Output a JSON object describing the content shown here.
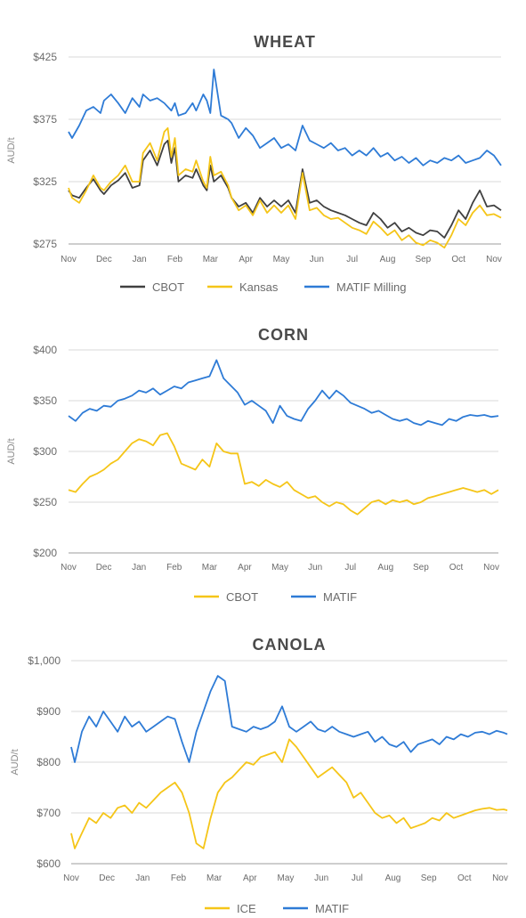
{
  "colors": {
    "cbot_dark": "#404040",
    "yellow": "#F5C518",
    "blue": "#2E7BD6"
  },
  "chart_data": [
    {
      "type": "line",
      "title": "WHEAT",
      "ylabel": "AUD/t",
      "ylim": [
        275,
        425
      ],
      "yticks": [
        275,
        325,
        375,
        425
      ],
      "ytick_labels": [
        "$275",
        "$325",
        "$375",
        "$425"
      ],
      "xlim": [
        0,
        12.2
      ],
      "xtick_labels": [
        "Nov",
        "Dec",
        "Jan",
        "Feb",
        "Mar",
        "Apr",
        "May",
        "Jun",
        "Jul",
        "Aug",
        "Sep",
        "Oct",
        "Nov"
      ],
      "legend_position": "bottom",
      "series": [
        {
          "name": "CBOT",
          "color": "#404040",
          "x": [
            0,
            0.1,
            0.3,
            0.5,
            0.7,
            0.9,
            1.0,
            1.2,
            1.4,
            1.6,
            1.8,
            2.0,
            2.1,
            2.3,
            2.5,
            2.7,
            2.8,
            2.9,
            3.0,
            3.1,
            3.3,
            3.5,
            3.6,
            3.8,
            3.9,
            4.0,
            4.1,
            4.3,
            4.5,
            4.6,
            4.8,
            5.0,
            5.2,
            5.4,
            5.6,
            5.8,
            6.0,
            6.2,
            6.4,
            6.6,
            6.8,
            7.0,
            7.2,
            7.4,
            7.6,
            7.8,
            8.0,
            8.2,
            8.4,
            8.6,
            8.8,
            9.0,
            9.2,
            9.4,
            9.6,
            9.8,
            10.0,
            10.2,
            10.4,
            10.6,
            10.8,
            11.0,
            11.2,
            11.4,
            11.6,
            11.8,
            12.0,
            12.2
          ],
          "values": [
            318,
            314,
            312,
            320,
            327,
            318,
            315,
            322,
            326,
            332,
            320,
            322,
            342,
            350,
            338,
            355,
            358,
            340,
            352,
            325,
            330,
            328,
            335,
            322,
            318,
            338,
            325,
            330,
            320,
            312,
            305,
            308,
            300,
            312,
            305,
            310,
            305,
            310,
            300,
            335,
            308,
            310,
            305,
            302,
            300,
            298,
            295,
            292,
            290,
            300,
            295,
            288,
            292,
            285,
            288,
            284,
            282,
            286,
            285,
            280,
            290,
            302,
            295,
            308,
            318,
            305,
            306,
            302
          ]
        },
        {
          "name": "Kansas",
          "color": "#F5C518",
          "x": [
            0,
            0.1,
            0.3,
            0.5,
            0.7,
            0.9,
            1.0,
            1.2,
            1.4,
            1.6,
            1.8,
            2.0,
            2.1,
            2.3,
            2.5,
            2.7,
            2.8,
            2.9,
            3.0,
            3.1,
            3.3,
            3.5,
            3.6,
            3.8,
            3.9,
            4.0,
            4.1,
            4.3,
            4.5,
            4.6,
            4.8,
            5.0,
            5.2,
            5.4,
            5.6,
            5.8,
            6.0,
            6.2,
            6.4,
            6.6,
            6.8,
            7.0,
            7.2,
            7.4,
            7.6,
            7.8,
            8.0,
            8.2,
            8.4,
            8.6,
            8.8,
            9.0,
            9.2,
            9.4,
            9.6,
            9.8,
            10.0,
            10.2,
            10.4,
            10.6,
            10.8,
            11.0,
            11.2,
            11.4,
            11.6,
            11.8,
            12.0,
            12.2
          ],
          "values": [
            320,
            312,
            308,
            318,
            330,
            320,
            318,
            325,
            330,
            338,
            325,
            325,
            348,
            356,
            342,
            365,
            368,
            345,
            360,
            330,
            335,
            333,
            342,
            325,
            320,
            345,
            330,
            333,
            322,
            312,
            302,
            306,
            298,
            310,
            300,
            306,
            300,
            306,
            295,
            332,
            302,
            304,
            298,
            295,
            296,
            292,
            288,
            286,
            283,
            293,
            288,
            282,
            286,
            278,
            282,
            276,
            274,
            278,
            276,
            272,
            282,
            295,
            290,
            300,
            306,
            298,
            299,
            296
          ]
        },
        {
          "name": "MATIF Milling",
          "color": "#2E7BD6",
          "x": [
            0,
            0.1,
            0.3,
            0.5,
            0.7,
            0.9,
            1.0,
            1.2,
            1.4,
            1.6,
            1.8,
            2.0,
            2.1,
            2.3,
            2.5,
            2.7,
            2.8,
            2.9,
            3.0,
            3.1,
            3.3,
            3.5,
            3.6,
            3.8,
            3.9,
            4.0,
            4.1,
            4.3,
            4.5,
            4.6,
            4.8,
            5.0,
            5.2,
            5.4,
            5.6,
            5.8,
            6.0,
            6.2,
            6.4,
            6.6,
            6.8,
            7.0,
            7.2,
            7.4,
            7.6,
            7.8,
            8.0,
            8.2,
            8.4,
            8.6,
            8.8,
            9.0,
            9.2,
            9.4,
            9.6,
            9.8,
            10.0,
            10.2,
            10.4,
            10.6,
            10.8,
            11.0,
            11.2,
            11.4,
            11.6,
            11.8,
            12.0,
            12.2
          ],
          "values": [
            365,
            360,
            370,
            382,
            385,
            380,
            390,
            395,
            388,
            380,
            392,
            385,
            395,
            390,
            392,
            388,
            385,
            382,
            388,
            378,
            380,
            388,
            382,
            395,
            390,
            380,
            415,
            378,
            375,
            372,
            360,
            368,
            362,
            352,
            356,
            360,
            352,
            355,
            350,
            370,
            358,
            355,
            352,
            356,
            350,
            352,
            346,
            350,
            346,
            352,
            345,
            348,
            342,
            345,
            340,
            344,
            338,
            342,
            340,
            344,
            342,
            346,
            340,
            342,
            344,
            350,
            346,
            338
          ]
        }
      ]
    },
    {
      "type": "line",
      "title": "CORN",
      "ylabel": "AUD/t",
      "ylim": [
        200,
        400
      ],
      "yticks": [
        200,
        250,
        300,
        350,
        400
      ],
      "ytick_labels": [
        "$200",
        "$250",
        "$300",
        "$350",
        "$400"
      ],
      "xlim": [
        0,
        12.2
      ],
      "xtick_labels": [
        "Nov",
        "Dec",
        "Jan",
        "Feb",
        "Mar",
        "Apr",
        "May",
        "Jun",
        "Jul",
        "Aug",
        "Sep",
        "Oct",
        "Nov"
      ],
      "legend_position": "bottom",
      "series": [
        {
          "name": "CBOT",
          "color": "#F5C518",
          "x": [
            0,
            0.2,
            0.4,
            0.6,
            0.8,
            1.0,
            1.2,
            1.4,
            1.6,
            1.8,
            2.0,
            2.2,
            2.4,
            2.6,
            2.8,
            3.0,
            3.2,
            3.4,
            3.6,
            3.8,
            4.0,
            4.2,
            4.4,
            4.6,
            4.8,
            5.0,
            5.2,
            5.4,
            5.6,
            5.8,
            6.0,
            6.2,
            6.4,
            6.6,
            6.8,
            7.0,
            7.2,
            7.4,
            7.6,
            7.8,
            8.0,
            8.2,
            8.4,
            8.6,
            8.8,
            9.0,
            9.2,
            9.4,
            9.6,
            9.8,
            10.0,
            10.2,
            10.4,
            10.6,
            10.8,
            11.0,
            11.2,
            11.4,
            11.6,
            11.8,
            12.0,
            12.2
          ],
          "values": [
            262,
            260,
            268,
            275,
            278,
            282,
            288,
            292,
            300,
            308,
            312,
            310,
            306,
            316,
            318,
            305,
            288,
            285,
            282,
            292,
            285,
            308,
            300,
            298,
            298,
            268,
            270,
            266,
            272,
            268,
            265,
            270,
            262,
            258,
            254,
            256,
            250,
            246,
            250,
            248,
            242,
            238,
            244,
            250,
            252,
            248,
            252,
            250,
            252,
            248,
            250,
            254,
            256,
            258,
            260,
            262,
            264,
            262,
            260,
            262,
            258,
            262
          ]
        },
        {
          "name": "MATIF",
          "color": "#2E7BD6",
          "x": [
            0,
            0.2,
            0.4,
            0.6,
            0.8,
            1.0,
            1.2,
            1.4,
            1.6,
            1.8,
            2.0,
            2.2,
            2.4,
            2.6,
            2.8,
            3.0,
            3.2,
            3.4,
            3.6,
            3.8,
            4.0,
            4.2,
            4.4,
            4.6,
            4.8,
            5.0,
            5.2,
            5.4,
            5.6,
            5.8,
            6.0,
            6.2,
            6.4,
            6.6,
            6.8,
            7.0,
            7.2,
            7.4,
            7.6,
            7.8,
            8.0,
            8.2,
            8.4,
            8.6,
            8.8,
            9.0,
            9.2,
            9.4,
            9.6,
            9.8,
            10.0,
            10.2,
            10.4,
            10.6,
            10.8,
            11.0,
            11.2,
            11.4,
            11.6,
            11.8,
            12.0,
            12.2
          ],
          "values": [
            335,
            330,
            338,
            342,
            340,
            345,
            344,
            350,
            352,
            355,
            360,
            358,
            362,
            356,
            360,
            364,
            362,
            368,
            370,
            372,
            374,
            390,
            372,
            365,
            358,
            346,
            350,
            345,
            340,
            328,
            345,
            335,
            332,
            330,
            342,
            350,
            360,
            352,
            360,
            355,
            348,
            345,
            342,
            338,
            340,
            336,
            332,
            330,
            332,
            328,
            326,
            330,
            328,
            326,
            332,
            330,
            334,
            336,
            335,
            336,
            334,
            335
          ]
        }
      ]
    },
    {
      "type": "line",
      "title": "CANOLA",
      "ylabel": "AUD/t",
      "ylim": [
        600,
        1000
      ],
      "yticks": [
        600,
        700,
        800,
        900,
        1000
      ],
      "ytick_labels": [
        "$600",
        "$700",
        "$800",
        "$900",
        "$1,000"
      ],
      "xlim": [
        0,
        12.2
      ],
      "xtick_labels": [
        "Nov",
        "Dec",
        "Jan",
        "Feb",
        "Mar",
        "Apr",
        "May",
        "Jun",
        "Jul",
        "Aug",
        "Sep",
        "Oct",
        "Nov"
      ],
      "legend_position": "bottom",
      "series": [
        {
          "name": "ICE",
          "color": "#F5C518",
          "x": [
            0,
            0.1,
            0.3,
            0.5,
            0.7,
            0.9,
            1.1,
            1.3,
            1.5,
            1.7,
            1.9,
            2.1,
            2.3,
            2.5,
            2.7,
            2.9,
            3.1,
            3.3,
            3.5,
            3.7,
            3.9,
            4.1,
            4.3,
            4.5,
            4.7,
            4.9,
            5.1,
            5.3,
            5.5,
            5.7,
            5.9,
            6.1,
            6.3,
            6.5,
            6.7,
            6.9,
            7.1,
            7.3,
            7.5,
            7.7,
            7.9,
            8.1,
            8.3,
            8.5,
            8.7,
            8.9,
            9.1,
            9.3,
            9.5,
            9.7,
            9.9,
            10.1,
            10.3,
            10.5,
            10.7,
            10.9,
            11.1,
            11.3,
            11.5,
            11.7,
            11.9,
            12.1,
            12.2
          ],
          "values": [
            660,
            630,
            660,
            690,
            680,
            700,
            690,
            710,
            715,
            700,
            720,
            710,
            725,
            740,
            750,
            760,
            740,
            700,
            640,
            630,
            690,
            740,
            760,
            770,
            785,
            800,
            795,
            810,
            815,
            820,
            800,
            845,
            830,
            810,
            790,
            770,
            780,
            790,
            775,
            760,
            730,
            740,
            720,
            700,
            690,
            695,
            680,
            690,
            670,
            675,
            680,
            690,
            685,
            700,
            690,
            695,
            700,
            705,
            708,
            710,
            706,
            707,
            705
          ]
        },
        {
          "name": "MATIF",
          "color": "#2E7BD6",
          "x": [
            0,
            0.1,
            0.3,
            0.5,
            0.7,
            0.9,
            1.1,
            1.3,
            1.5,
            1.7,
            1.9,
            2.1,
            2.3,
            2.5,
            2.7,
            2.9,
            3.1,
            3.3,
            3.5,
            3.7,
            3.9,
            4.1,
            4.3,
            4.5,
            4.7,
            4.9,
            5.1,
            5.3,
            5.5,
            5.7,
            5.9,
            6.1,
            6.3,
            6.5,
            6.7,
            6.9,
            7.1,
            7.3,
            7.5,
            7.7,
            7.9,
            8.1,
            8.3,
            8.5,
            8.7,
            8.9,
            9.1,
            9.3,
            9.5,
            9.7,
            9.9,
            10.1,
            10.3,
            10.5,
            10.7,
            10.9,
            11.1,
            11.3,
            11.5,
            11.7,
            11.9,
            12.1,
            12.2
          ],
          "values": [
            830,
            800,
            860,
            890,
            870,
            900,
            880,
            860,
            890,
            870,
            880,
            860,
            870,
            880,
            890,
            885,
            840,
            800,
            860,
            900,
            940,
            970,
            960,
            870,
            865,
            860,
            870,
            865,
            870,
            880,
            910,
            870,
            860,
            870,
            880,
            865,
            860,
            870,
            860,
            855,
            850,
            855,
            860,
            840,
            850,
            835,
            830,
            840,
            820,
            835,
            840,
            845,
            835,
            850,
            845,
            855,
            850,
            858,
            860,
            855,
            862,
            858,
            855
          ]
        }
      ]
    }
  ]
}
